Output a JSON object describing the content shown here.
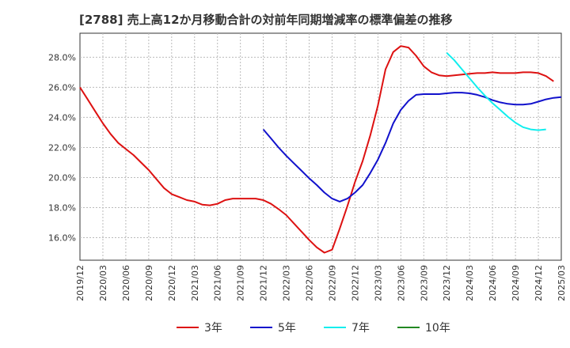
{
  "chart_data": {
    "type": "line",
    "title": "[2788]  売上高12か月移動合計の対前年同期増減率の標準偏差の推移",
    "xlabel": "",
    "ylabel": "",
    "ylim": [
      14.5,
      29.6
    ],
    "y_ticks": [
      "16.0%",
      "18.0%",
      "20.0%",
      "22.0%",
      "24.0%",
      "26.0%",
      "28.0%"
    ],
    "y_tick_values": [
      16,
      18,
      20,
      22,
      24,
      26,
      28
    ],
    "x_ticks": [
      "2019/12",
      "2020/03",
      "2020/06",
      "2020/09",
      "2020/12",
      "2021/03",
      "2021/06",
      "2021/09",
      "2021/12",
      "2022/03",
      "2022/06",
      "2022/09",
      "2022/12",
      "2023/03",
      "2023/06",
      "2023/09",
      "2023/12",
      "2024/03",
      "2024/06",
      "2024/09",
      "2024/12",
      "2025/03"
    ],
    "x_range_months": [
      0,
      63
    ],
    "grid": true,
    "legend_position": "bottom",
    "series": [
      {
        "name": "3年",
        "color": "#dd1111",
        "points": [
          [
            0,
            26.0
          ],
          [
            1,
            25.2
          ],
          [
            2,
            24.4
          ],
          [
            3,
            23.6
          ],
          [
            4,
            22.9
          ],
          [
            5,
            22.3
          ],
          [
            6,
            21.9
          ],
          [
            7,
            21.5
          ],
          [
            8,
            21.0
          ],
          [
            9,
            20.5
          ],
          [
            10,
            19.9
          ],
          [
            11,
            19.3
          ],
          [
            12,
            18.9
          ],
          [
            13,
            18.7
          ],
          [
            14,
            18.5
          ],
          [
            15,
            18.4
          ],
          [
            16,
            18.2
          ],
          [
            17,
            18.15
          ],
          [
            18,
            18.25
          ],
          [
            19,
            18.5
          ],
          [
            20,
            18.6
          ],
          [
            21,
            18.6
          ],
          [
            22,
            18.6
          ],
          [
            23,
            18.6
          ],
          [
            24,
            18.5
          ],
          [
            25,
            18.25
          ],
          [
            26,
            17.9
          ],
          [
            27,
            17.5
          ],
          [
            28,
            16.95
          ],
          [
            29,
            16.4
          ],
          [
            30,
            15.85
          ],
          [
            31,
            15.35
          ],
          [
            32,
            15.0
          ],
          [
            33,
            15.2
          ],
          [
            34,
            16.6
          ],
          [
            35,
            18.1
          ],
          [
            36,
            19.7
          ],
          [
            37,
            21.1
          ],
          [
            38,
            22.8
          ],
          [
            39,
            24.8
          ],
          [
            40,
            27.2
          ],
          [
            41,
            28.35
          ],
          [
            42,
            28.75
          ],
          [
            43,
            28.65
          ],
          [
            44,
            28.1
          ],
          [
            45,
            27.4
          ],
          [
            46,
            27.0
          ],
          [
            47,
            26.8
          ],
          [
            48,
            26.75
          ],
          [
            49,
            26.8
          ],
          [
            50,
            26.85
          ],
          [
            51,
            26.9
          ],
          [
            52,
            26.95
          ],
          [
            53,
            26.95
          ],
          [
            54,
            27.0
          ],
          [
            55,
            26.95
          ],
          [
            56,
            26.95
          ],
          [
            57,
            26.95
          ],
          [
            58,
            27.0
          ],
          [
            59,
            27.0
          ],
          [
            60,
            26.95
          ],
          [
            61,
            26.75
          ],
          [
            62,
            26.4
          ]
        ]
      },
      {
        "name": "5年",
        "color": "#1111cc",
        "points": [
          [
            24,
            23.2
          ],
          [
            25,
            22.6
          ],
          [
            26,
            22.0
          ],
          [
            27,
            21.45
          ],
          [
            28,
            20.95
          ],
          [
            29,
            20.45
          ],
          [
            30,
            19.95
          ],
          [
            31,
            19.5
          ],
          [
            32,
            19.0
          ],
          [
            33,
            18.6
          ],
          [
            34,
            18.4
          ],
          [
            35,
            18.6
          ],
          [
            36,
            19.0
          ],
          [
            37,
            19.5
          ],
          [
            38,
            20.3
          ],
          [
            39,
            21.2
          ],
          [
            40,
            22.3
          ],
          [
            41,
            23.6
          ],
          [
            42,
            24.5
          ],
          [
            43,
            25.1
          ],
          [
            44,
            25.5
          ],
          [
            45,
            25.55
          ],
          [
            46,
            25.55
          ],
          [
            47,
            25.55
          ],
          [
            48,
            25.6
          ],
          [
            49,
            25.65
          ],
          [
            50,
            25.65
          ],
          [
            51,
            25.6
          ],
          [
            52,
            25.5
          ],
          [
            53,
            25.35
          ],
          [
            54,
            25.15
          ],
          [
            55,
            25.0
          ],
          [
            56,
            24.9
          ],
          [
            57,
            24.85
          ],
          [
            58,
            24.85
          ],
          [
            59,
            24.9
          ],
          [
            60,
            25.05
          ],
          [
            61,
            25.2
          ],
          [
            62,
            25.3
          ],
          [
            63,
            25.35
          ]
        ]
      },
      {
        "name": "7年",
        "color": "#11eeee",
        "points": [
          [
            48,
            28.3
          ],
          [
            49,
            27.8
          ],
          [
            50,
            27.2
          ],
          [
            51,
            26.6
          ],
          [
            52,
            26.0
          ],
          [
            53,
            25.45
          ],
          [
            54,
            24.95
          ],
          [
            55,
            24.5
          ],
          [
            56,
            24.05
          ],
          [
            57,
            23.65
          ],
          [
            58,
            23.35
          ],
          [
            59,
            23.2
          ],
          [
            60,
            23.15
          ],
          [
            61,
            23.2
          ]
        ]
      },
      {
        "name": "10年",
        "color": "#228822",
        "points": []
      }
    ]
  }
}
